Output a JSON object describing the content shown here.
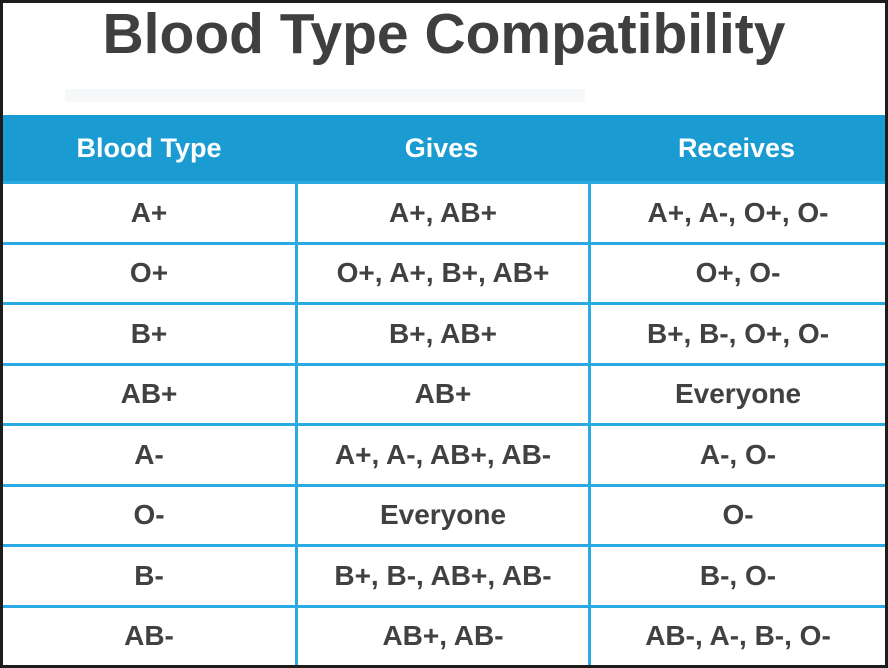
{
  "title": "Blood Type Compatibility",
  "colors": {
    "header_bg": "#1a9cd3",
    "divider": "#29abe2",
    "header_text": "#ffffff",
    "body_text": "#414042",
    "title_text": "#3f3f3f",
    "outer_border": "#1c1c1c",
    "background": "#ffffff"
  },
  "chart_data": {
    "type": "table",
    "title": "Blood Type Compatibility",
    "columns": [
      "Blood Type",
      "Gives",
      "Receives"
    ],
    "rows": [
      [
        "A+",
        "A+, AB+",
        "A+, A-, O+, O-"
      ],
      [
        "O+",
        "O+, A+, B+, AB+",
        "O+, O-"
      ],
      [
        "B+",
        "B+, AB+",
        "B+, B-, O+, O-"
      ],
      [
        "AB+",
        "AB+",
        "Everyone"
      ],
      [
        "A-",
        "A+, A-, AB+, AB-",
        "A-, O-"
      ],
      [
        "O-",
        "Everyone",
        "O-"
      ],
      [
        "B-",
        "B+, B-, AB+, AB-",
        "B-, O-"
      ],
      [
        "AB-",
        "AB+, AB-",
        "AB-, A-, B-, O-"
      ]
    ]
  }
}
